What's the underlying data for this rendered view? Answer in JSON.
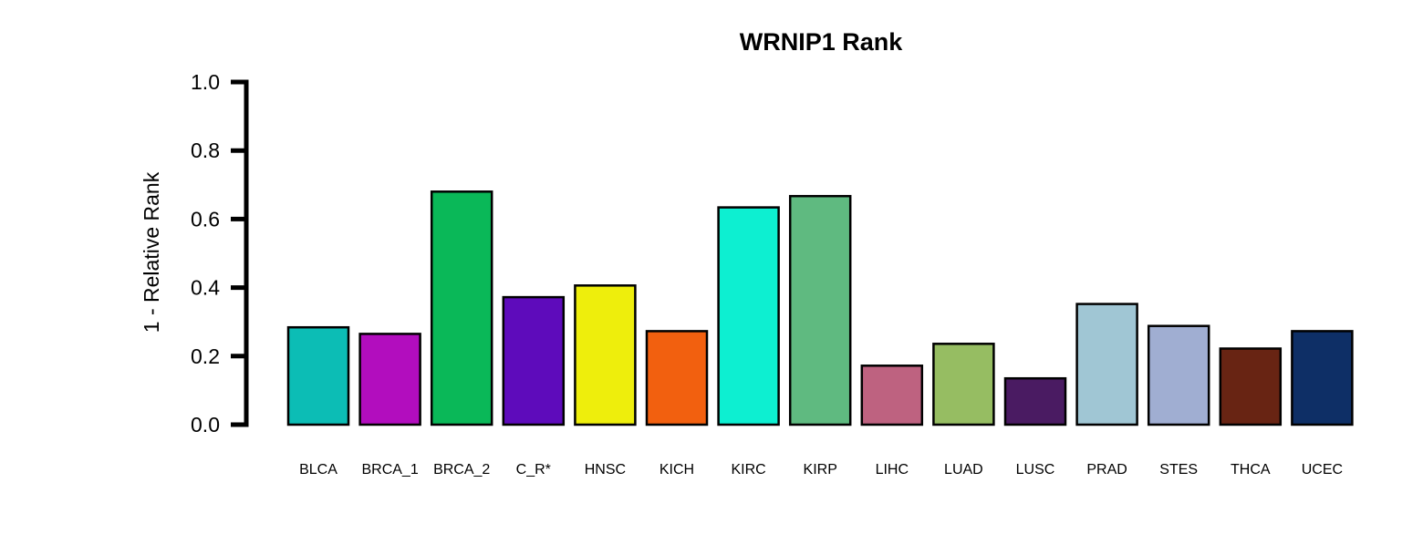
{
  "chart_data": {
    "type": "bar",
    "title": "WRNIP1 Rank",
    "xlabel": "",
    "ylabel": "1 - Relative Rank",
    "ylim": [
      0,
      1
    ],
    "yticks": [
      "0.0",
      "0.2",
      "0.4",
      "0.6",
      "0.8",
      "1.0"
    ],
    "grid": false,
    "legend": "none",
    "categories": [
      "BLCA",
      "BRCA_1",
      "BRCA_2",
      "C_R*",
      "HNSC",
      "KICH",
      "KIRC",
      "KIRP",
      "LIHC",
      "LUAD",
      "LUSC",
      "PRAD",
      "STES",
      "THCA",
      "UCEC"
    ],
    "values": [
      0.284,
      0.265,
      0.68,
      0.372,
      0.406,
      0.273,
      0.634,
      0.667,
      0.172,
      0.236,
      0.135,
      0.352,
      0.288,
      0.222,
      0.273
    ],
    "colors": [
      "#0CBDB5",
      "#B20DBE",
      "#0AB858",
      "#5E0BBB",
      "#EEEE0C",
      "#F2600F",
      "#0DEFD1",
      "#5FBA80",
      "#BE6280",
      "#96BD62",
      "#4A1B62",
      "#A0C6D4",
      "#A0AED2",
      "#682413",
      "#0E2F66"
    ]
  }
}
